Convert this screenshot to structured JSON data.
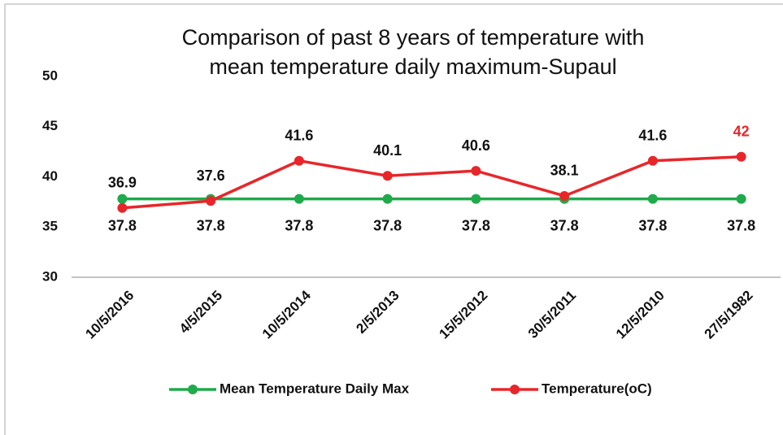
{
  "chart_data": {
    "type": "line",
    "title": [
      "Comparison of past 8 years of temperature with",
      "mean temperature daily maximum-Supaul"
    ],
    "categories": [
      "10/5/2016",
      "4/5/2015",
      "10/5/2014",
      "2/5/2013",
      "15/5/2012",
      "30/5/2011",
      "12/5/2010",
      "27/5/1982"
    ],
    "series": [
      {
        "name": "Mean Temperature Daily Max",
        "color": "#1faa4b",
        "label_position": "below",
        "values": [
          37.8,
          37.8,
          37.8,
          37.8,
          37.8,
          37.8,
          37.8,
          37.8
        ]
      },
      {
        "name": "Temperature(oC)",
        "color": "#e8262a",
        "label_position": "above",
        "label_colors": [
          "#111111",
          "#111111",
          "#111111",
          "#111111",
          "#111111",
          "#111111",
          "#111111",
          "#e8262a"
        ],
        "values": [
          36.9,
          37.6,
          41.6,
          40.1,
          40.6,
          38.1,
          41.6,
          42
        ]
      }
    ],
    "ylim": [
      30,
      50
    ],
    "yticks": [
      30,
      35,
      40,
      45,
      50
    ],
    "grid": false,
    "legend": "bottom"
  }
}
